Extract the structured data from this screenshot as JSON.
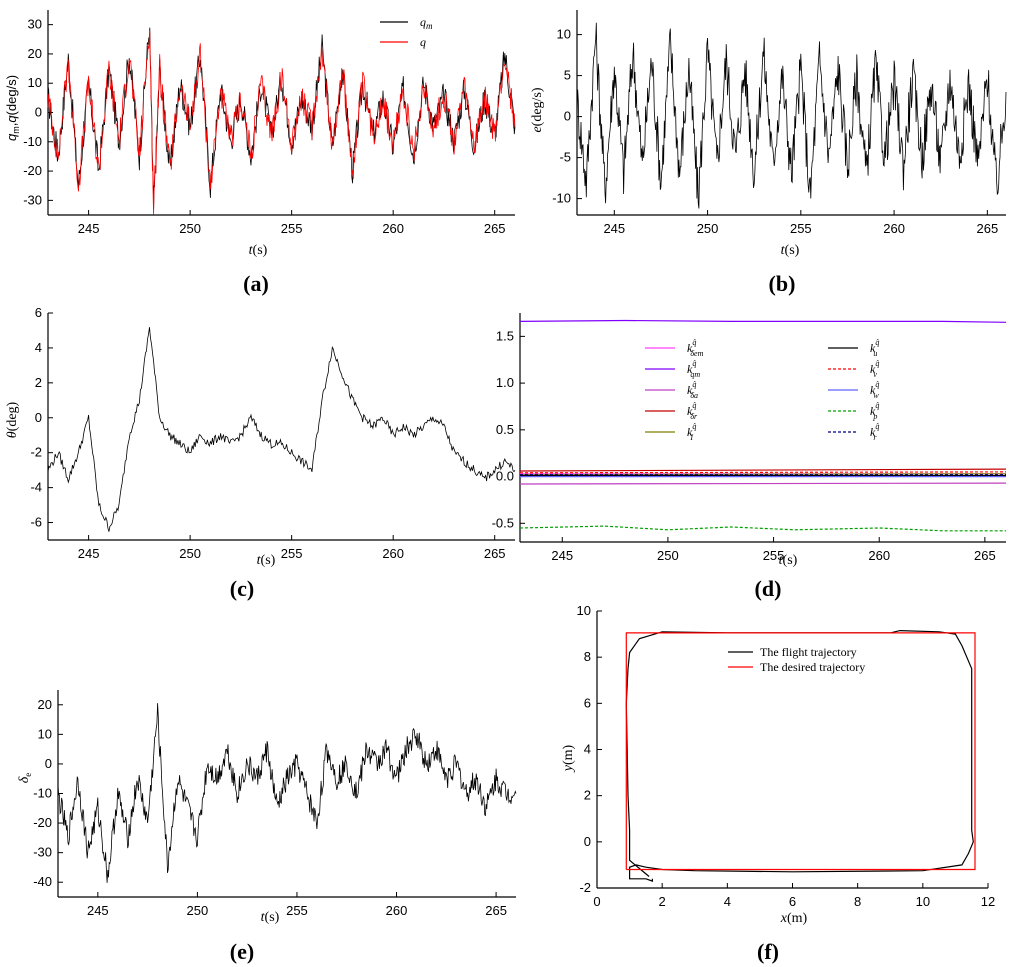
{
  "chart_data": [
    {
      "id": "a",
      "panel_label": "(a)",
      "type": "line",
      "xlabel": "t(s)",
      "ylabel": "q_m, q(deg/s)",
      "xlim": [
        243,
        266
      ],
      "ylim": [
        -35,
        35
      ],
      "xticks": [
        245,
        250,
        255,
        260,
        265
      ],
      "yticks": [
        -30,
        -20,
        -10,
        0,
        10,
        20,
        30
      ],
      "legend": "top-right",
      "series": [
        {
          "name": "q_m",
          "color": "#000000",
          "x": [
            243,
            243.5,
            244,
            244.5,
            245,
            245.5,
            246,
            246.5,
            247,
            247.5,
            248,
            248.2,
            248.5,
            249,
            249.5,
            250,
            250.5,
            251,
            251.5,
            252,
            252.5,
            253,
            253.5,
            254,
            254.5,
            255,
            255.5,
            256,
            256.5,
            257,
            257.5,
            258,
            258.5,
            259,
            259.5,
            260,
            260.5,
            261,
            261.5,
            262,
            262.5,
            263,
            263.5,
            264,
            264.5,
            265,
            265.5,
            266
          ],
          "y": [
            5,
            -15,
            18,
            -25,
            10,
            -20,
            15,
            -10,
            20,
            -15,
            30,
            -33,
            15,
            -20,
            10,
            -5,
            20,
            -25,
            8,
            -10,
            5,
            -15,
            10,
            -8,
            12,
            -10,
            5,
            -5,
            22,
            -12,
            15,
            -20,
            10,
            -8,
            5,
            -12,
            8,
            -15,
            10,
            -5,
            6,
            -10,
            8,
            -12,
            5,
            -8,
            20,
            -5
          ]
        },
        {
          "name": "q",
          "color": "#ff0000",
          "x": [
            243,
            243.5,
            244,
            244.5,
            245,
            245.5,
            246,
            246.5,
            247,
            247.5,
            248,
            248.2,
            248.5,
            249,
            249.5,
            250,
            250.5,
            251,
            251.5,
            252,
            252.5,
            253,
            253.5,
            254,
            254.5,
            255,
            255.5,
            256,
            256.5,
            257,
            257.5,
            258,
            258.5,
            259,
            259.5,
            260,
            260.5,
            261,
            261.5,
            262,
            262.5,
            263,
            263.5,
            264,
            264.5,
            265,
            265.5,
            266
          ],
          "y": [
            5,
            -15,
            18,
            -25,
            10,
            -20,
            15,
            -10,
            20,
            -15,
            30,
            -33,
            15,
            -20,
            10,
            -5,
            20,
            -25,
            8,
            -10,
            5,
            -15,
            10,
            -8,
            12,
            -10,
            5,
            -5,
            22,
            -12,
            15,
            -20,
            10,
            -8,
            5,
            -12,
            8,
            -15,
            10,
            -5,
            6,
            -10,
            8,
            -12,
            5,
            -8,
            20,
            -5
          ]
        }
      ]
    },
    {
      "id": "b",
      "panel_label": "(b)",
      "type": "line",
      "xlabel": "t(s)",
      "ylabel": "e(deg/s)",
      "xlim": [
        243,
        266
      ],
      "ylim": [
        -12,
        13
      ],
      "xticks": [
        245,
        250,
        255,
        260,
        265
      ],
      "yticks": [
        -10,
        -5,
        0,
        5,
        10
      ],
      "series": [
        {
          "name": "",
          "color": "#000000",
          "x": [
            243,
            243.5,
            244,
            244.5,
            245,
            245.5,
            246,
            246.5,
            247,
            247.5,
            248,
            248.5,
            249,
            249.5,
            250,
            250.5,
            251,
            251.5,
            252,
            252.5,
            253,
            253.5,
            254,
            254.5,
            255,
            255.5,
            256,
            256.5,
            257,
            257.5,
            258,
            258.5,
            259,
            259.5,
            260,
            260.5,
            261,
            261.5,
            262,
            262.5,
            263,
            263.5,
            264,
            264.5,
            265,
            265.5,
            266
          ],
          "y": [
            2,
            -8,
            10,
            -9,
            6,
            -7,
            8,
            -6,
            7,
            -8,
            9,
            -7,
            6,
            -10,
            8,
            -6,
            7,
            -5,
            6,
            -7,
            8,
            -6,
            5,
            -7,
            6,
            -10,
            7,
            -5,
            6,
            -6,
            5,
            -7,
            6,
            -5,
            4,
            -6,
            5,
            -5,
            4,
            -6,
            5,
            -5,
            4,
            -6,
            5,
            -9,
            3
          ]
        }
      ]
    },
    {
      "id": "c",
      "panel_label": "(c)",
      "type": "line",
      "xlabel": "t(s)",
      "ylabel": "θ(deg)",
      "xlim": [
        243,
        266
      ],
      "ylim": [
        -7,
        6
      ],
      "xticks": [
        245,
        250,
        255,
        260,
        265
      ],
      "yticks": [
        -6,
        -4,
        -2,
        0,
        2,
        4,
        6
      ],
      "series": [
        {
          "name": "",
          "color": "#000000",
          "x": [
            243,
            243.5,
            244,
            244.5,
            245,
            245.5,
            246,
            246.5,
            247,
            247.5,
            248,
            248.5,
            249,
            249.5,
            250,
            250.5,
            251,
            251.5,
            252,
            252.5,
            253,
            253.5,
            254,
            254.5,
            255,
            255.5,
            256,
            256.5,
            257,
            257.5,
            258,
            258.5,
            259,
            259.5,
            260,
            260.5,
            261,
            261.5,
            262,
            262.5,
            263,
            263.5,
            264,
            264.5,
            265,
            265.5,
            266
          ],
          "y": [
            -3,
            -2,
            -3.5,
            -2,
            0,
            -5,
            -6.3,
            -5,
            -1,
            1,
            5.2,
            0,
            -1,
            -1.5,
            -2,
            -1,
            -1.5,
            -1,
            -1.5,
            -1,
            0,
            -1,
            -1.5,
            -1.5,
            -2,
            -2.5,
            -3,
            1,
            4,
            2.5,
            1,
            0,
            -0.5,
            0,
            -1,
            -0.5,
            -1,
            -0.5,
            0,
            -0.5,
            -2,
            -2.5,
            -3,
            -3.5,
            -3,
            -2.5,
            -3
          ]
        }
      ]
    },
    {
      "id": "d",
      "panel_label": "(d)",
      "type": "line",
      "xlabel": "t(s)",
      "ylabel": "",
      "xlim": [
        243,
        266
      ],
      "ylim": [
        -0.7,
        1.75
      ],
      "xticks": [
        245,
        250,
        255,
        260,
        265
      ],
      "yticks": [
        -0.5,
        0.0,
        0.5,
        1.0,
        1.5
      ],
      "ytick_labels": [
        "-0.5",
        "0.0",
        "0.5",
        "1.0",
        "1.5"
      ],
      "legend": "top-center",
      "series": [
        {
          "name": "k_δem",
          "color": "#ff40ff",
          "dash": "",
          "x": [
            243,
            266
          ],
          "y": [
            0.03,
            0.03
          ]
        },
        {
          "name": "k_qm",
          "color": "#8000ff",
          "dash": "",
          "x": [
            243,
            248,
            253,
            258,
            263,
            266
          ],
          "y": [
            1.66,
            1.67,
            1.66,
            1.66,
            1.66,
            1.65
          ]
        },
        {
          "name": "k_δa",
          "color": "#c040c0",
          "dash": "",
          "x": [
            243,
            266
          ],
          "y": [
            -0.08,
            -0.07
          ]
        },
        {
          "name": "k_δr",
          "color": "#c00000",
          "dash": "",
          "x": [
            243,
            266
          ],
          "y": [
            0.06,
            0.08
          ]
        },
        {
          "name": "k_I",
          "color": "#808000",
          "dash": "",
          "x": [
            243,
            266
          ],
          "y": [
            0.02,
            0.03
          ]
        },
        {
          "name": "k_u",
          "color": "#000000",
          "dash": "",
          "x": [
            243,
            266
          ],
          "y": [
            0.01,
            0.01
          ]
        },
        {
          "name": "k_v",
          "color": "#ff0000",
          "dash": "3,2",
          "x": [
            243,
            266
          ],
          "y": [
            0.04,
            0.05
          ]
        },
        {
          "name": "k_w",
          "color": "#6060ff",
          "dash": "",
          "x": [
            243,
            266
          ],
          "y": [
            0.0,
            0.0
          ]
        },
        {
          "name": "k_p",
          "color": "#00a000",
          "dash": "3,2",
          "x": [
            243,
            247,
            250,
            253,
            256,
            260,
            263,
            266
          ],
          "y": [
            -0.55,
            -0.53,
            -0.57,
            -0.54,
            -0.57,
            -0.55,
            -0.58,
            -0.58
          ]
        },
        {
          "name": "k_r",
          "color": "#000080",
          "dash": "3,2",
          "x": [
            243,
            266
          ],
          "y": [
            0.02,
            0.02
          ]
        }
      ]
    },
    {
      "id": "e",
      "panel_label": "(e)",
      "type": "line",
      "xlabel": "t(s)",
      "ylabel": "δe",
      "xlim": [
        243,
        266
      ],
      "ylim": [
        -45,
        25
      ],
      "xticks": [
        245,
        250,
        255,
        260,
        265
      ],
      "yticks": [
        -40,
        -30,
        -20,
        -10,
        0,
        10,
        20
      ],
      "series": [
        {
          "name": "",
          "color": "#000000",
          "x": [
            243,
            243.5,
            244,
            244.5,
            245,
            245.5,
            246,
            246.5,
            247,
            247.5,
            248,
            248.5,
            249,
            249.5,
            250,
            250.5,
            251,
            251.5,
            252,
            252.5,
            253,
            253.5,
            254,
            254.5,
            255,
            255.5,
            256,
            256.5,
            257,
            257.5,
            258,
            258.5,
            259,
            259.5,
            260,
            260.5,
            261,
            261.5,
            262,
            262.5,
            263,
            263.5,
            264,
            264.5,
            265,
            265.5,
            266
          ],
          "y": [
            -10,
            -25,
            -5,
            -30,
            -15,
            -38,
            -10,
            -25,
            -5,
            -20,
            17,
            -35,
            -5,
            -15,
            -25,
            0,
            -5,
            5,
            -10,
            0,
            -5,
            5,
            -15,
            -5,
            0,
            -10,
            -20,
            5,
            -5,
            0,
            -10,
            5,
            0,
            5,
            -5,
            5,
            10,
            0,
            5,
            -5,
            0,
            -10,
            -5,
            -15,
            -5,
            -10,
            -10
          ]
        }
      ]
    },
    {
      "id": "f",
      "panel_label": "(f)",
      "type": "line",
      "xlabel": "x(m)",
      "ylabel": "y(m)",
      "xlim": [
        0,
        12
      ],
      "ylim": [
        -2,
        10
      ],
      "xticks": [
        0,
        2,
        4,
        6,
        8,
        10,
        12
      ],
      "yticks": [
        -2,
        0,
        2,
        4,
        6,
        8,
        10
      ],
      "legend": "top-center",
      "series": [
        {
          "name": "The flight trajectory",
          "color": "#000000",
          "x": [
            1.6,
            1.0,
            1.0,
            0.95,
            0.9,
            0.95,
            1.0,
            1.3,
            2.0,
            4.0,
            8.0,
            9.0,
            9.3,
            10.5,
            11.0,
            11.2,
            11.5,
            11.5,
            11.55,
            11.4,
            11.2,
            10.0,
            6.0,
            3.0,
            2.0,
            1.5,
            1.2,
            1.0,
            1.0,
            1.5,
            1.7,
            1.7
          ],
          "y": [
            -1.5,
            -0.8,
            0.5,
            2.0,
            6.0,
            7.5,
            8.2,
            8.8,
            9.1,
            9.05,
            9.05,
            9.05,
            9.15,
            9.1,
            9.0,
            8.5,
            7.5,
            0.5,
            0.0,
            -0.5,
            -1.0,
            -1.25,
            -1.3,
            -1.25,
            -1.2,
            -1.1,
            -1.0,
            -1.1,
            -1.6,
            -1.6,
            -1.7,
            -1.6
          ]
        },
        {
          "name": "The desired trajectory",
          "color": "#ff0000",
          "x": [
            0.9,
            11.6,
            11.6,
            0.9,
            0.9
          ],
          "y": [
            -1.2,
            -1.2,
            9.05,
            9.05,
            -1.2
          ]
        }
      ]
    }
  ]
}
